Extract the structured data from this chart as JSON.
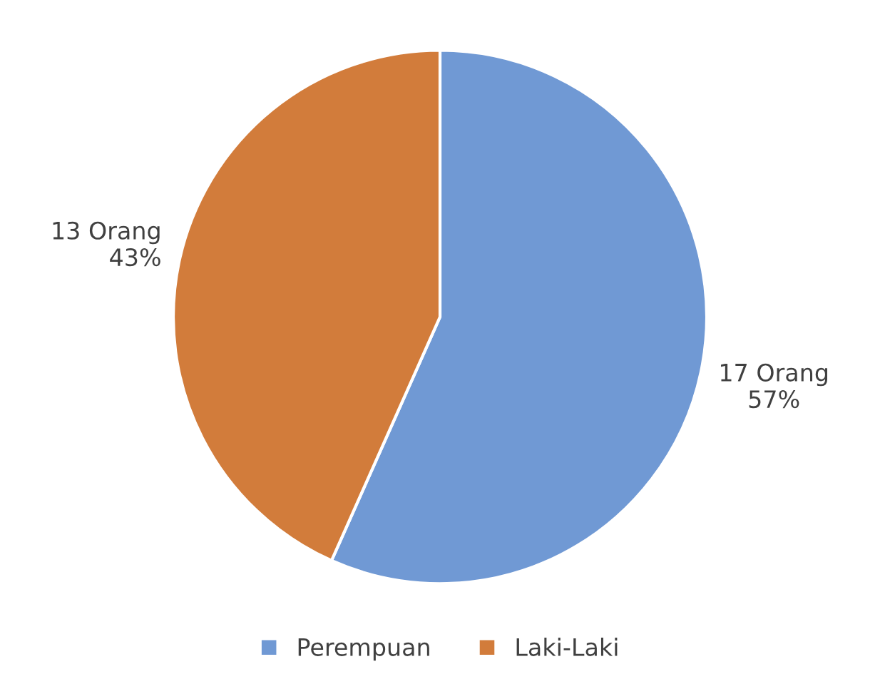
{
  "chart_data": {
    "type": "pie",
    "categories": [
      "Perempuan",
      "Laki-Laki"
    ],
    "values": [
      17,
      13
    ],
    "colors": [
      "#7099d4",
      "#d27c3b"
    ],
    "value_labels": [
      "17 Orang\n57%",
      "13 Orang\n43%"
    ],
    "legend": "bottom"
  }
}
